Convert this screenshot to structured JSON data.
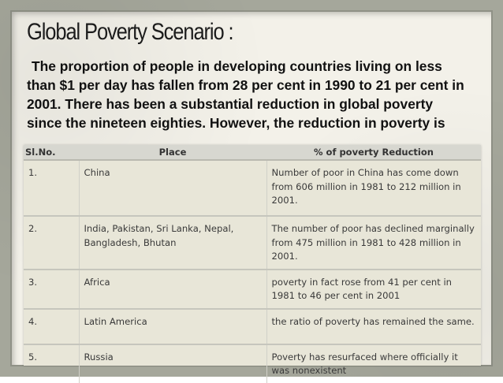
{
  "slide": {
    "title": "Global Poverty Scenario :",
    "paragraph": "The proportion of people in developing countries living on less than $1 per day has fallen from 28 per cent in 1990 to 21 per cent in 2001. There has been a substantial reduction in global poverty since the nineteen eighties. However, the reduction in poverty is"
  },
  "table": {
    "headers": [
      "Sl.No.",
      "Place",
      "% of poverty Reduction"
    ],
    "rows": [
      [
        "1.",
        "China",
        "Number of poor in China has come down from 606 million in 1981 to 212 million in 2001."
      ],
      [
        "2.",
        "India, Pakistan, Sri Lanka, Nepal, Bangladesh, Bhutan",
        "The number of poor has declined marginally from 475 million in 1981 to 428 million in 2001."
      ],
      [
        "3.",
        "Africa",
        "poverty in fact rose from 41 per cent in 1981 to 46 per cent in 2001"
      ],
      [
        "4.",
        "Latin America",
        "the ratio of poverty has remained the same."
      ],
      [
        "5.",
        "Russia",
        "Poverty has resurfaced where officially it was nonexistent"
      ]
    ]
  },
  "colors": {
    "frame": "#a5a79b",
    "slide_background": "#f3f1e9",
    "table_header": "#d7d7d0",
    "table_body": "#e8e6d8"
  }
}
